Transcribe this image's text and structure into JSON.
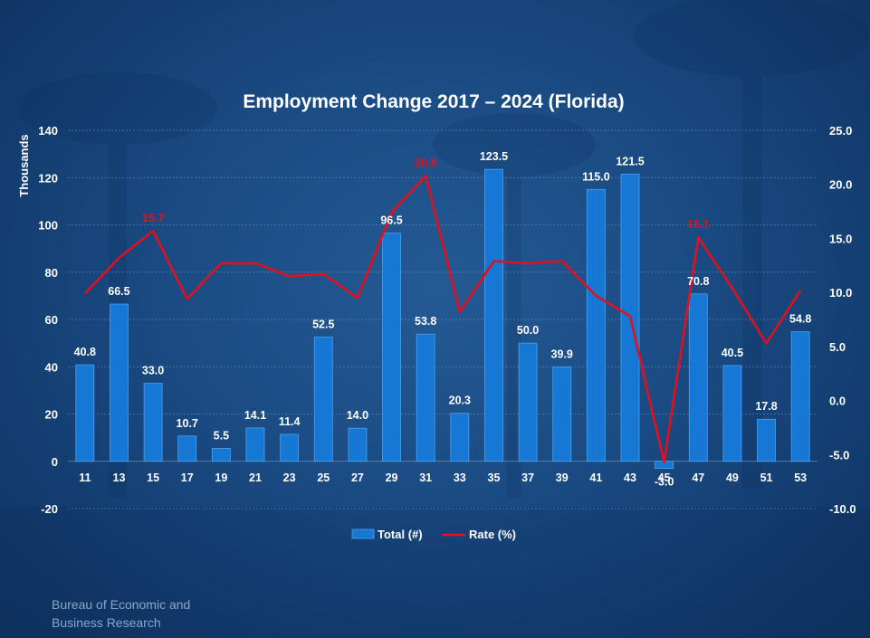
{
  "footer": {
    "line1": "Bureau of Economic  and",
    "line2": "Business Research"
  },
  "colors": {
    "bar": "#1677d4",
    "bar_edge": "#4aa3f0",
    "line": "#e0101e",
    "text": "#ffffff",
    "grid": "#6f93c0",
    "highlight_label": "#e0101e"
  },
  "chart_data": {
    "type": "bar",
    "title": "Employment Change 2017 – 2024 (Florida)",
    "ylabel": "Thousands",
    "ylim": [
      -20,
      140
    ],
    "y_ticks": [
      "-20",
      "0",
      "20",
      "40",
      "60",
      "80",
      "100",
      "120",
      "140"
    ],
    "y2lim": [
      -10,
      25
    ],
    "y2_ticks": [
      "-10.0",
      "-5.0",
      "0.0",
      "5.0",
      "10.0",
      "15.0",
      "20.0",
      "25.0"
    ],
    "categories": [
      "11",
      "13",
      "15",
      "17",
      "19",
      "21",
      "23",
      "25",
      "27",
      "29",
      "31",
      "33",
      "35",
      "37",
      "39",
      "41",
      "43",
      "45",
      "47",
      "49",
      "51",
      "53"
    ],
    "series": [
      {
        "name": "Total (#)",
        "kind": "bar",
        "axis": "left",
        "values": [
          40.8,
          66.5,
          33.0,
          10.7,
          5.5,
          14.1,
          11.4,
          52.5,
          14.0,
          96.5,
          53.8,
          20.3,
          123.5,
          50.0,
          39.9,
          115.0,
          121.5,
          -3.0,
          70.8,
          40.5,
          17.8,
          54.8
        ],
        "labels": [
          "40.8",
          "66.5",
          "33.0",
          "10.7",
          "5.5",
          "14.1",
          "11.4",
          "52.5",
          "14.0",
          "96.5",
          "53.8",
          "20.3",
          "123.5",
          "50.0",
          "39.9",
          "115.0",
          "121.5",
          "-3.0",
          "70.8",
          "40.5",
          "17.8",
          "54.8"
        ]
      },
      {
        "name": "Rate (%)",
        "kind": "line",
        "axis": "right",
        "values": [
          9.9,
          13.2,
          15.7,
          9.4,
          12.7,
          12.7,
          11.5,
          11.7,
          9.5,
          17.4,
          20.8,
          8.2,
          12.9,
          12.7,
          12.9,
          9.7,
          7.8,
          -5.7,
          15.1,
          10.4,
          5.3,
          10.2
        ],
        "labels": [
          {
            "index": 2,
            "text": "15.7"
          },
          {
            "index": 10,
            "text": "20.8"
          },
          {
            "index": 18,
            "text": "15.1"
          }
        ]
      }
    ],
    "legend": "bottom-center",
    "grid": true
  }
}
